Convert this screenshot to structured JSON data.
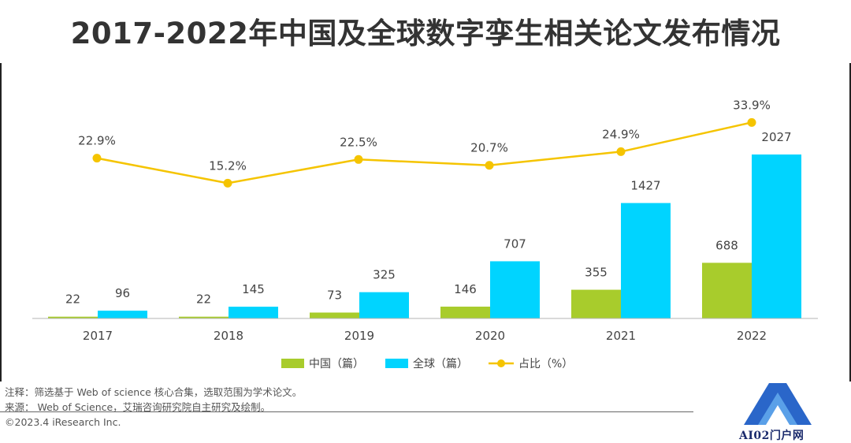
{
  "title": "2017-2022年中国及全球数字孪生相关论文发布情况",
  "chart_data": {
    "type": "bar",
    "categories": [
      "2017",
      "2018",
      "2019",
      "2020",
      "2021",
      "2022"
    ],
    "series": [
      {
        "name": "中国（篇）",
        "values": [
          22,
          22,
          73,
          146,
          355,
          688
        ],
        "color": "#a8cc2c",
        "labels": [
          "22",
          "22",
          "73",
          "146",
          "355",
          "688"
        ]
      },
      {
        "name": "全球（篇）",
        "values": [
          96,
          145,
          325,
          707,
          1427,
          2027
        ],
        "color": "#00d4ff",
        "labels": [
          "96",
          "145",
          "325",
          "707",
          "1427",
          "2027"
        ]
      }
    ],
    "line_series": {
      "name": "占比（%）",
      "values": [
        22.9,
        15.2,
        22.5,
        20.7,
        24.9,
        33.9
      ],
      "labels": [
        "22.9%",
        "15.2%",
        "22.5%",
        "20.7%",
        "24.9%",
        "33.9%"
      ],
      "color": "#f5c400"
    },
    "bar_ylim": [
      0,
      2027
    ],
    "legend": [
      "中国（篇）",
      "全球（篇）",
      "占比（%）"
    ],
    "legend_position": "bottom"
  },
  "notes": {
    "line1": "注释：筛选基于 Web of science 核心合集，选取范围为学术论文。",
    "line2": "来源： Web of Science，艾瑞咨询研究院自主研究及绘制。",
    "line3": "©2023.4 iResearch Inc."
  },
  "watermark": {
    "text": "AI02门户网"
  }
}
